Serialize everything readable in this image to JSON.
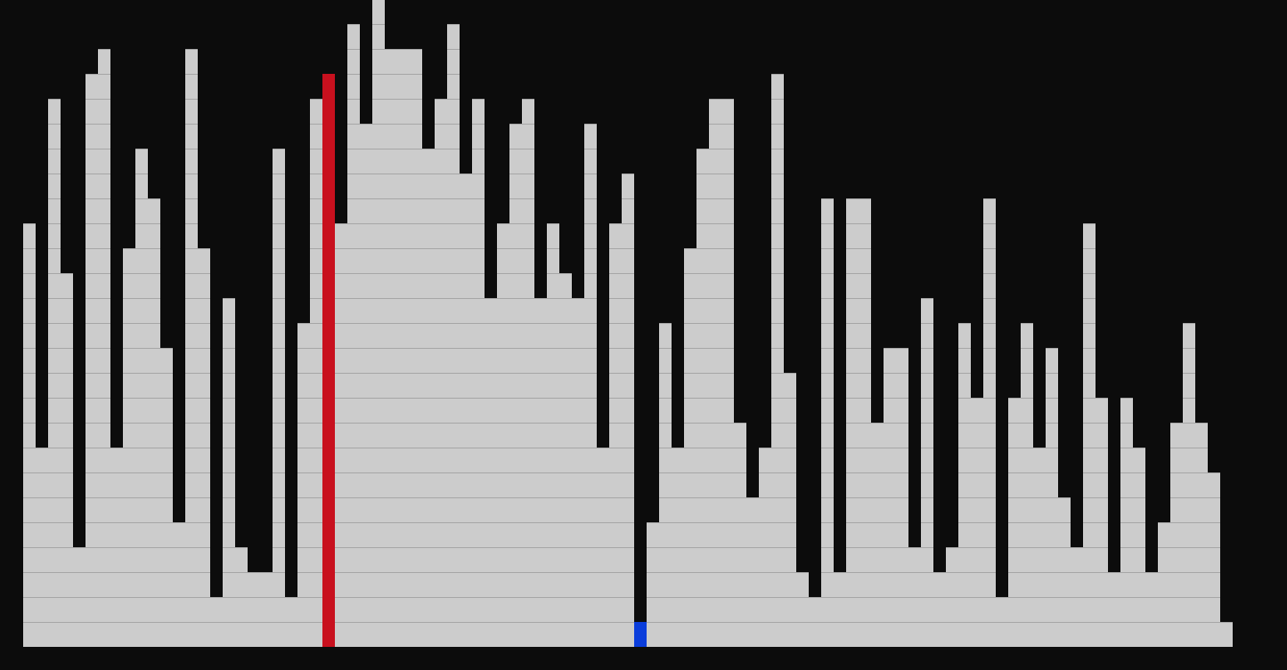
{
  "visualizer": {
    "heights": [
      17,
      8,
      22,
      15,
      4,
      23,
      24,
      8,
      16,
      20,
      18,
      12,
      5,
      24,
      16,
      2,
      14,
      4,
      3,
      3,
      20,
      2,
      13,
      22,
      23,
      17,
      25,
      21,
      26,
      24,
      24,
      24,
      20,
      22,
      25,
      19,
      22,
      14,
      17,
      21,
      22,
      14,
      17,
      15,
      14,
      21,
      8,
      17,
      19,
      1,
      5,
      13,
      8,
      16,
      20,
      22,
      22,
      9,
      6,
      8,
      23,
      11,
      3,
      2,
      18,
      3,
      18,
      18,
      9,
      12,
      12,
      4,
      14,
      3,
      4,
      13,
      10,
      18,
      2,
      10,
      13,
      8,
      12,
      6,
      4,
      17,
      10,
      3,
      10,
      8,
      3,
      5,
      9,
      13,
      9,
      7,
      1
    ],
    "red_index": 24,
    "blue_index": 49,
    "colors": {
      "background": "#0c0c0c",
      "bar": "#cccccc",
      "bar_grid": "#a6a6a6",
      "highlight_red": "#c8101e",
      "highlight_blue": "#0a3ddb"
    }
  }
}
